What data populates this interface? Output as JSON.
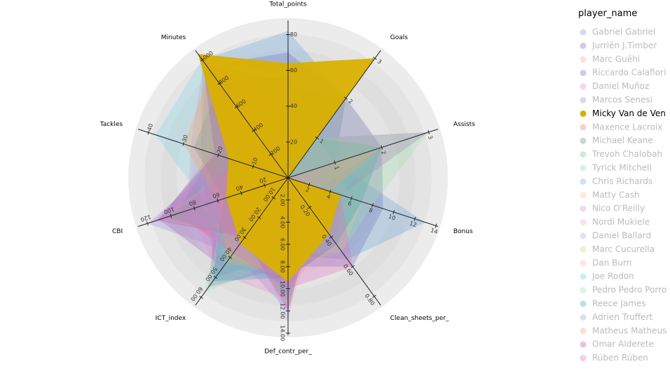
{
  "chart_data": {
    "type": "radar",
    "legend_title": "player_name",
    "highlighted": "Micky Van de Ven",
    "axes": [
      {
        "name": "Total_points",
        "lim": [
          0,
          88
        ],
        "ticks": [
          20,
          40,
          60,
          80
        ]
      },
      {
        "name": "Goals",
        "lim": [
          0,
          3.2
        ],
        "ticks": [
          1,
          2,
          3
        ]
      },
      {
        "name": "Assists",
        "lim": [
          0,
          3.2
        ],
        "ticks": [
          1,
          2,
          3
        ]
      },
      {
        "name": "Bonus",
        "lim": [
          0,
          14.2
        ],
        "ticks": [
          2,
          4,
          6,
          8,
          10,
          12,
          14
        ]
      },
      {
        "name": "Clean_sheets_per_",
        "lim": [
          0,
          0.86
        ],
        "ticks": [
          {
            "value": 0.2,
            "label": "0.20"
          },
          {
            "value": 0.4,
            "label": "0.40"
          },
          {
            "value": 0.6,
            "label": "0.60"
          },
          {
            "value": 0.8,
            "label": "0.80"
          }
        ]
      },
      {
        "name": "Def_contr_per_",
        "lim": [
          0,
          14.2
        ],
        "ticks": [
          {
            "value": 2,
            "label": "2.00"
          },
          {
            "value": 4,
            "label": "4.00"
          },
          {
            "value": 6,
            "label": "6.00"
          },
          {
            "value": 8,
            "label": "8.00"
          },
          {
            "value": 10,
            "label": "10.00"
          },
          {
            "value": 12,
            "label": "12.00"
          },
          {
            "value": 14,
            "label": "14.00"
          }
        ]
      },
      {
        "name": "ICT_index",
        "lim": [
          0,
          64
        ],
        "ticks": [
          {
            "value": 10,
            "label": "10.00"
          },
          {
            "value": 20,
            "label": "20.00"
          },
          {
            "value": 30,
            "label": "30.00"
          },
          {
            "value": 40,
            "label": "40.00"
          },
          {
            "value": 50,
            "label": "50.00"
          },
          {
            "value": 60,
            "label": "60.00"
          }
        ]
      },
      {
        "name": "CBI",
        "lim": [
          0,
          128
        ],
        "ticks": [
          20,
          40,
          60,
          80,
          100,
          120
        ]
      },
      {
        "name": "Tackles",
        "lim": [
          0,
          43
        ],
        "ticks": [
          10,
          20,
          30,
          40
        ]
      },
      {
        "name": "Minutes",
        "lim": [
          0,
          1080
        ],
        "ticks": [
          200,
          400,
          600,
          800,
          1000
        ]
      }
    ],
    "series": [
      {
        "name": "Gabriel Gabriel",
        "color": "#5fa2dd",
        "values": [
          82,
          2,
          1,
          13,
          0.55,
          7,
          50,
          70,
          15,
          1000
        ]
      },
      {
        "name": "Jurriën J.Timber",
        "color": "#6f6fb7",
        "values": [
          70,
          2,
          2,
          9,
          0.6,
          8,
          55,
          60,
          25,
          950
        ]
      },
      {
        "name": "Marc Guéhi",
        "color": "#f4a6a6",
        "values": [
          60,
          1,
          1,
          6,
          0.4,
          10,
          40,
          90,
          20,
          1000
        ]
      },
      {
        "name": "Riccardo Calafiori",
        "color": "#9b59b6",
        "values": [
          55,
          1,
          3,
          5,
          0.45,
          9,
          45,
          110,
          22,
          900
        ]
      },
      {
        "name": "Daniel Muñoz",
        "color": "#e78ac3",
        "values": [
          50,
          0,
          2,
          4,
          0.3,
          11,
          48,
          85,
          28,
          980
        ]
      },
      {
        "name": "Marcos Senesi",
        "color": "#a48ad6",
        "values": [
          45,
          1,
          1,
          3,
          0.25,
          12,
          38,
          120,
          18,
          1000
        ]
      },
      {
        "name": "Micky Van de Ven",
        "color": "#d9b000",
        "values": [
          64,
          3,
          0,
          5,
          0.38,
          9.4,
          33,
          53,
          17,
          1050
        ]
      },
      {
        "name": "Maxence Lacroix",
        "color": "#e8797c",
        "values": [
          48,
          1,
          0,
          4,
          0.3,
          10,
          35,
          100,
          20,
          1000
        ]
      },
      {
        "name": "Michael Keane",
        "color": "#5f8f7f",
        "values": [
          44,
          2,
          0,
          3,
          0.25,
          11,
          30,
          105,
          12,
          950
        ]
      },
      {
        "name": "Trevoh Chalobah",
        "color": "#72c68f",
        "values": [
          50,
          2,
          1,
          4,
          0.35,
          8,
          38,
          80,
          15,
          900
        ]
      },
      {
        "name": "Tyrick Mitchell",
        "color": "#7fd3e8",
        "values": [
          52,
          0,
          2,
          5,
          0.3,
          9,
          45,
          70,
          38,
          1000
        ]
      },
      {
        "name": "Chris Richards",
        "color": "#6aaee0",
        "values": [
          46,
          1,
          0,
          6,
          0.3,
          10,
          35,
          95,
          22,
          880
        ]
      },
      {
        "name": "Matty Cash",
        "color": "#f7c28f",
        "values": [
          42,
          1,
          2,
          3,
          0.25,
          9,
          40,
          60,
          25,
          850
        ]
      },
      {
        "name": "Nico O'Reilly",
        "color": "#c79ad0",
        "values": [
          55,
          2,
          1,
          6,
          0.45,
          6,
          48,
          55,
          20,
          920
        ]
      },
      {
        "name": "Nordi Mukiele",
        "color": "#f5a3d6",
        "values": [
          40,
          0,
          1,
          2,
          0.2,
          8,
          32,
          75,
          24,
          870
        ]
      },
      {
        "name": "Daniel Ballard",
        "color": "#b3a6e6",
        "values": [
          38,
          1,
          0,
          2,
          0.2,
          13,
          28,
          115,
          20,
          960
        ]
      },
      {
        "name": "Marc Cucurella",
        "color": "#d9cf7a",
        "values": [
          58,
          1,
          2,
          7,
          0.5,
          8,
          44,
          65,
          26,
          990
        ]
      },
      {
        "name": "Dan Burn",
        "color": "#f6b7b0",
        "values": [
          43,
          1,
          1,
          3,
          0.3,
          12,
          30,
          110,
          14,
          1000
        ]
      },
      {
        "name": "Joe Rodon",
        "color": "#5fd6d0",
        "values": [
          45,
          0,
          0,
          4,
          0.3,
          11,
          33,
          100,
          16,
          1000
        ]
      },
      {
        "name": "Pedro Pedro Porro",
        "color": "#9ee0b0",
        "values": [
          62,
          1,
          3,
          8,
          0.5,
          7,
          58,
          50,
          22,
          950
        ]
      },
      {
        "name": "Reece James",
        "color": "#3d9fc4",
        "values": [
          57,
          1,
          2,
          7,
          0.45,
          9,
          52,
          55,
          27,
          800
        ]
      },
      {
        "name": "Adrien Truffert",
        "color": "#8fa8d2",
        "values": [
          40,
          0,
          1,
          3,
          0.25,
          8,
          36,
          70,
          25,
          1000
        ]
      },
      {
        "name": "Matheus Matheus N",
        "color": "#f2a36b",
        "values": [
          48,
          0,
          2,
          4,
          0.35,
          9,
          42,
          60,
          30,
          900
        ]
      },
      {
        "name": "Omar Alderete",
        "color": "#b05fa7",
        "values": [
          38,
          1,
          0,
          3,
          0.25,
          12,
          30,
          112,
          21,
          1000
        ]
      },
      {
        "name": "Rúben Rúben",
        "color": "#e86cc0",
        "values": [
          52,
          0,
          0,
          5,
          0.6,
          10,
          38,
          95,
          15,
          1000
        ]
      }
    ]
  }
}
